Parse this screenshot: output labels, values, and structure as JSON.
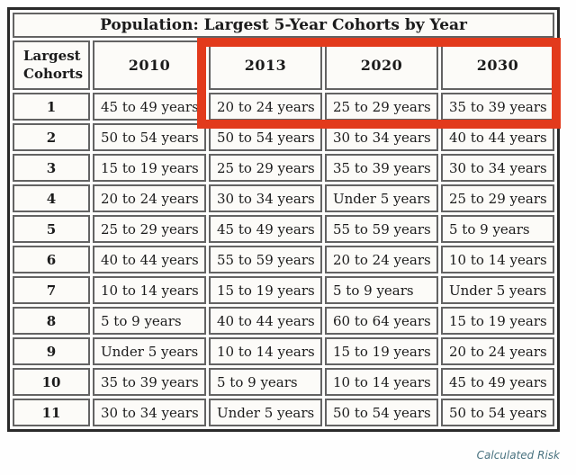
{
  "table": {
    "title": "Population: Largest 5-Year Cohorts by Year",
    "columns": [
      "Largest Cohorts",
      "2010",
      "2013",
      "2020",
      "2030"
    ],
    "rows": [
      {
        "rank": "1",
        "cohorts": [
          "45 to 49 years",
          "20 to 24 years",
          "25 to 29 years",
          "35 to 39 years"
        ]
      },
      {
        "rank": "2",
        "cohorts": [
          "50 to 54 years",
          "50 to 54 years",
          "30 to 34 years",
          "40 to 44 years"
        ]
      },
      {
        "rank": "3",
        "cohorts": [
          "15 to 19 years",
          "25 to 29 years",
          "35 to 39 years",
          "30 to 34 years"
        ]
      },
      {
        "rank": "4",
        "cohorts": [
          "20 to 24 years",
          "30 to 34 years",
          "Under 5 years",
          "25 to 29 years"
        ]
      },
      {
        "rank": "5",
        "cohorts": [
          "25 to 29 years",
          "45 to 49 years",
          "55 to 59 years",
          "5 to 9 years"
        ]
      },
      {
        "rank": "6",
        "cohorts": [
          "40 to 44 years",
          "55 to 59 years",
          "20 to 24 years",
          "10 to 14 years"
        ]
      },
      {
        "rank": "7",
        "cohorts": [
          "10 to 14 years",
          "15 to 19 years",
          "5 to 9 years",
          "Under 5 years"
        ]
      },
      {
        "rank": "8",
        "cohorts": [
          "5 to 9 years",
          "40 to 44 years",
          "60 to 64 years",
          "15 to 19 years"
        ]
      },
      {
        "rank": "9",
        "cohorts": [
          "Under 5 years",
          "10 to 14 years",
          "15 to 19 years",
          "20 to 24 years"
        ]
      },
      {
        "rank": "10",
        "cohorts": [
          "35 to 39 years",
          "5 to 9 years",
          "10 to 14 years",
          "45 to 49 years"
        ]
      },
      {
        "rank": "11",
        "cohorts": [
          "30 to 34 years",
          "Under 5 years",
          "50 to 54 years",
          "50 to 54 years"
        ]
      }
    ]
  },
  "highlight": {
    "color": "#e23a1c",
    "highlighted_columns": [
      "2013",
      "2020",
      "2030"
    ],
    "highlighted_rows": [
      "header",
      "rank 1"
    ]
  },
  "attribution": {
    "text": "Calculated Risk",
    "color": "#4a7380"
  },
  "chart_data": {
    "type": "table",
    "title": "Population: Largest 5-Year Cohorts by Year",
    "columns": [
      "Largest Cohorts",
      "2010",
      "2013",
      "2020",
      "2030"
    ],
    "rows": [
      [
        "1",
        "45 to 49 years",
        "20 to 24 years",
        "25 to 29 years",
        "35 to 39 years"
      ],
      [
        "2",
        "50 to 54 years",
        "50 to 54 years",
        "30 to 34 years",
        "40 to 44 years"
      ],
      [
        "3",
        "15 to 19 years",
        "25 to 29 years",
        "35 to 39 years",
        "30 to 34 years"
      ],
      [
        "4",
        "20 to 24 years",
        "30 to 34 years",
        "Under 5 years",
        "25 to 29 years"
      ],
      [
        "5",
        "25 to 29 years",
        "45 to 49 years",
        "55 to 59 years",
        "5 to 9 years"
      ],
      [
        "6",
        "40 to 44 years",
        "55 to 59 years",
        "20 to 24 years",
        "10 to 14 years"
      ],
      [
        "7",
        "10 to 14 years",
        "15 to 19 years",
        "5 to 9 years",
        "Under 5 years"
      ],
      [
        "8",
        "5 to 9 years",
        "40 to 44 years",
        "60 to 64 years",
        "15 to 19 years"
      ],
      [
        "9",
        "Under 5 years",
        "10 to 14 years",
        "15 to 19 years",
        "20 to 24 years"
      ],
      [
        "10",
        "35 to 39 years",
        "5 to 9 years",
        "10 to 14 years",
        "45 to 49 years"
      ],
      [
        "11",
        "30 to 34 years",
        "Under 5 years",
        "50 to 54 years",
        "50 to 54 years"
      ]
    ],
    "annotations": [
      "red rectangle highlighting 2013, 2020 and 2030 header cells plus rank-1 row cells"
    ],
    "source_label": "Calculated Risk"
  }
}
